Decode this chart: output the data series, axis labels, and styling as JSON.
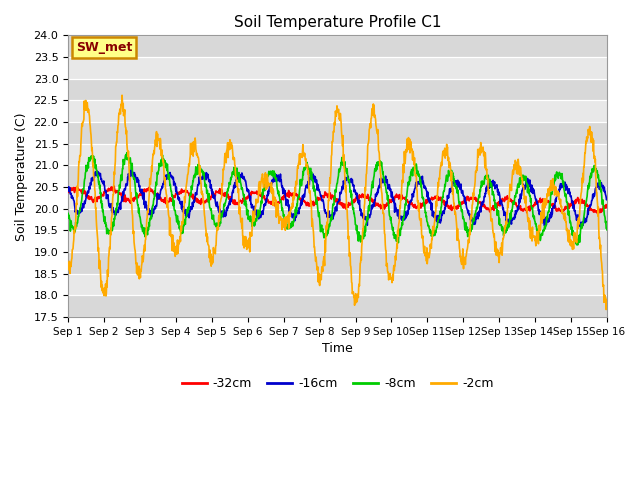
{
  "title": "Soil Temperature Profile C1",
  "xlabel": "Time",
  "ylabel": "Soil Temperature (C)",
  "ylim": [
    17.5,
    24.0
  ],
  "yticks": [
    17.5,
    18.0,
    18.5,
    19.0,
    19.5,
    20.0,
    20.5,
    21.0,
    21.5,
    22.0,
    22.5,
    23.0,
    23.5,
    24.0
  ],
  "xtick_labels": [
    "Sep 1",
    "Sep 2",
    "Sep 3",
    "Sep 4",
    "Sep 5",
    "Sep 6",
    "Sep 7",
    "Sep 8",
    "Sep 9",
    "Sep 10",
    "Sep 11",
    "Sep 12",
    "Sep 13",
    "Sep 14",
    "Sep 15",
    "Sep 16"
  ],
  "colors": {
    "-32cm": "#ff0000",
    "-16cm": "#0000cc",
    "-8cm": "#00cc00",
    "-2cm": "#ffaa00"
  },
  "annotation_text": "SW_met",
  "annotation_bg": "#ffff88",
  "annotation_edge": "#cc8800",
  "annotation_text_color": "#880000",
  "bg_color": "#e8e8e8",
  "bg_band_color": "#d8d8d8",
  "n_days": 15,
  "n_points": 1440
}
